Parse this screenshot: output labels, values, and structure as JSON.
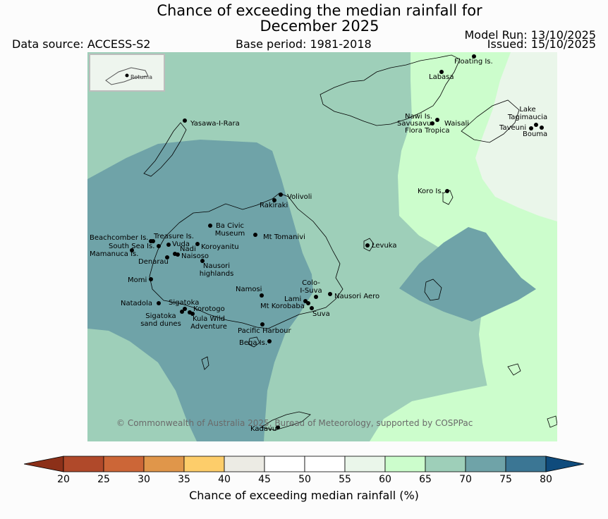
{
  "title": {
    "line1": "Chance of exceeding the median rainfall for",
    "line2": "December 2025"
  },
  "header": {
    "data_source": "Data source: ACCESS-S2",
    "base_period": "Base period: 1981-2018",
    "model_run": "Model Run: 13/10/2025",
    "issued": "Issued: 15/10/2025"
  },
  "inset": {
    "label": "Rotuma"
  },
  "places": {
    "floating_is": "Floating Is.",
    "labasa": "Labasa",
    "yasawa": "Yasawa-I-Rara",
    "nawi": "Nawi Is.",
    "savusavu": "Savusavu",
    "waisali": "Waisali",
    "flora_tropica": "Flora Tropica",
    "lake_tagimaucia_1": "Lake",
    "lake_tagimaucia_2": "Tagimaucia",
    "taveuni": "Taveuni",
    "bouma": "Bouma",
    "volivoli": "Volivoli",
    "rakiraki": "Rakiraki",
    "koro": "Koro Is.",
    "ba_civic_1": "Ba Civic",
    "ba_civic_2": "Museum",
    "mt_tomanivi": "Mt Tomanivi",
    "beachcomber": "Beachcomber Is.",
    "treasure": "Treasure Is.",
    "south_sea": "South Sea Is.",
    "vuda": "Vuda",
    "koroyanitu": "Koroyanitu",
    "levuka": "Levuka",
    "nadi": "Nadi",
    "mamanuca": "Mamanuca Is.",
    "naisoso": "Naisoso",
    "denarau": "Denarau",
    "nausori_highlands_1": "Nausori",
    "nausori_highlands_2": "highlands",
    "momi": "Momi",
    "namosi": "Namosi",
    "colo_1": "Colo-",
    "colo_2": "I-Suva",
    "nausori_aero": "Nausori Aero",
    "lami": "Lami",
    "mt_korobaba": "Mt Korobaba",
    "suva": "Suva",
    "natadola": "Natadola",
    "sigatoka": "Sigatoka",
    "korotogo": "Korotogo",
    "sigatoka_dunes_1": "Sigatoka",
    "sigatoka_dunes_2": "sand dunes",
    "kula_1": "Kula Wild",
    "kula_2": "Adventure",
    "pacific_harbour": "Pacific Harbour",
    "beqa": "Beqa Is.",
    "kadavu": "Kadavu"
  },
  "copyright": "© Commonwealth of Australia 2025, Bureau of Meteorology, supported by COSPPac",
  "colorbar": {
    "label": "Chance of exceeding median rainfall (%)",
    "ticks": [
      "20",
      "25",
      "30",
      "35",
      "40",
      "45",
      "50",
      "55",
      "60",
      "65",
      "70",
      "75",
      "80"
    ],
    "colors": [
      "#b0492a",
      "#cc6637",
      "#e0964a",
      "#fdcd6a",
      "#ecebe4",
      "#ffffff",
      "#ffffff",
      "#eaf6ea",
      "#ccfdcc",
      "#9ecfb9",
      "#6fa3a8",
      "#3b7694"
    ],
    "low_color": "#8c3019",
    "high_color": "#0f4b7c"
  },
  "map_colors": {
    "c55_60": "#eaf6ea",
    "c60_65": "#ccfdcc",
    "c65_70": "#9ecfb9",
    "c70_75": "#6fa3a8"
  }
}
